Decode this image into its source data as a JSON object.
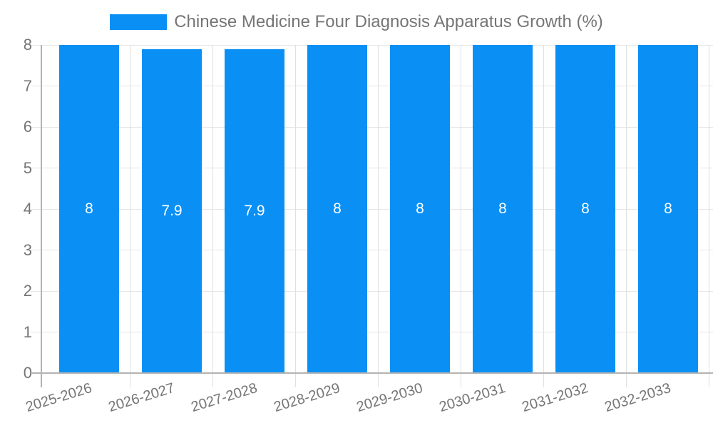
{
  "legend": {
    "label": "Chinese Medicine Four Diagnosis Apparatus Growth (%)",
    "swatch_color": "#0A90F5"
  },
  "chart_data": {
    "type": "bar",
    "title": "Chinese Medicine Four Diagnosis Apparatus Growth (%)",
    "categories": [
      "2025-2026",
      "2026-2027",
      "2027-2028",
      "2028-2029",
      "2029-2030",
      "2030-2031",
      "2031-2032",
      "2032-2033"
    ],
    "values": [
      8,
      7.9,
      7.9,
      8,
      8,
      8,
      8,
      8
    ],
    "bar_labels": [
      "8",
      "7.9",
      "7.9",
      "8",
      "8",
      "8",
      "8",
      "8"
    ],
    "xlabel": "",
    "ylabel": "",
    "ylim": [
      0,
      8
    ],
    "yticks": [
      0,
      1,
      2,
      3,
      4,
      5,
      6,
      7,
      8
    ],
    "grid": true,
    "legend_position": "top-center",
    "bar_color": "#0A90F5",
    "value_label_color": "#ffffff",
    "axis_text_color": "#757575",
    "gridline_color": "#e6e6e6",
    "axis_line_color": "#b3b3b3"
  }
}
